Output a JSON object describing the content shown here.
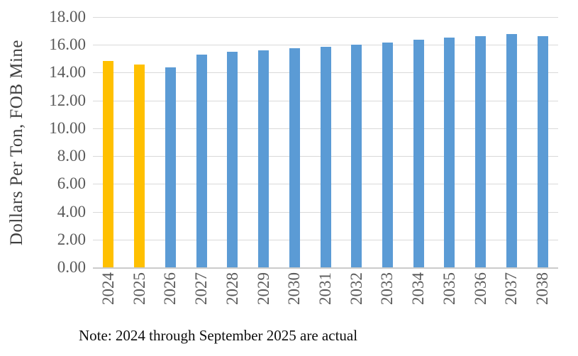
{
  "chart_data": {
    "type": "bar",
    "title": "",
    "xlabel": "",
    "ylabel": "Dollars Per Ton, FOB Mine",
    "ylim": [
      0,
      18
    ],
    "ytick_step": 2,
    "yticks": [
      "18.00",
      "16.00",
      "14.00",
      "12.00",
      "10.00",
      "8.00",
      "6.00",
      "4.00",
      "2.00",
      "0.00"
    ],
    "grid": true,
    "legend": "none",
    "categories": [
      "2024",
      "2025",
      "2026",
      "2027",
      "2028",
      "2029",
      "2030",
      "2031",
      "2032",
      "2033",
      "2034",
      "2035",
      "2036",
      "2037",
      "2038"
    ],
    "values": [
      14.9,
      14.62,
      14.45,
      15.36,
      15.53,
      15.64,
      15.8,
      15.92,
      16.05,
      16.21,
      16.4,
      16.55,
      16.7,
      16.85,
      16.7
    ],
    "bar_colors": [
      "#FFC000",
      "#FFC000",
      "#5B9BD5",
      "#5B9BD5",
      "#5B9BD5",
      "#5B9BD5",
      "#5B9BD5",
      "#5B9BD5",
      "#5B9BD5",
      "#5B9BD5",
      "#5B9BD5",
      "#5B9BD5",
      "#5B9BD5",
      "#5B9BD5",
      "#5B9BD5"
    ],
    "note": "Note: 2024 through September 2025 are actual",
    "colors": {
      "actual_bar": "#FFC000",
      "projected_bar": "#5B9BD5",
      "gridline": "#D9D9D9",
      "axis_line": "#CBCBCB",
      "tick_label": "#595959",
      "axis_title": "#3F3F3F",
      "note_text": "#0D0D0D",
      "background": "#FFFFFF"
    }
  }
}
